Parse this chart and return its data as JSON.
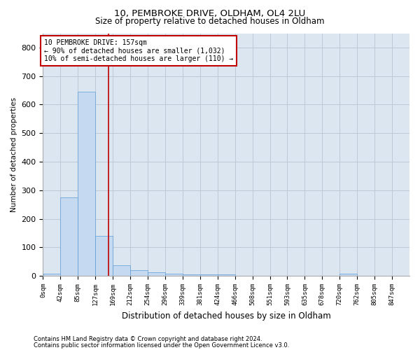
{
  "title1": "10, PEMBROKE DRIVE, OLDHAM, OL4 2LU",
  "title2": "Size of property relative to detached houses in Oldham",
  "xlabel": "Distribution of detached houses by size in Oldham",
  "ylabel": "Number of detached properties",
  "footnote1": "Contains HM Land Registry data © Crown copyright and database right 2024.",
  "footnote2": "Contains public sector information licensed under the Open Government Licence v3.0.",
  "bar_labels": [
    "0sqm",
    "42sqm",
    "85sqm",
    "127sqm",
    "169sqm",
    "212sqm",
    "254sqm",
    "296sqm",
    "339sqm",
    "381sqm",
    "424sqm",
    "466sqm",
    "508sqm",
    "551sqm",
    "593sqm",
    "635sqm",
    "678sqm",
    "720sqm",
    "762sqm",
    "805sqm",
    "847sqm"
  ],
  "bar_values": [
    8,
    275,
    645,
    140,
    38,
    20,
    12,
    8,
    6,
    5,
    6,
    0,
    0,
    0,
    0,
    0,
    0,
    8,
    0,
    0,
    0
  ],
  "bar_color": "#c5d9f0",
  "bar_edge_color": "#5b9bd5",
  "grid_color": "#c0c8d8",
  "background_color": "#dce6f1",
  "annotation_box_color": "#c00000",
  "property_line_x": 157,
  "annotation_text": "10 PEMBROKE DRIVE: 157sqm\n← 90% of detached houses are smaller (1,032)\n10% of semi-detached houses are larger (110) →",
  "ylim": [
    0,
    850
  ],
  "yticks": [
    0,
    100,
    200,
    300,
    400,
    500,
    600,
    700,
    800
  ],
  "bin_width": 42,
  "n_bins": 21
}
